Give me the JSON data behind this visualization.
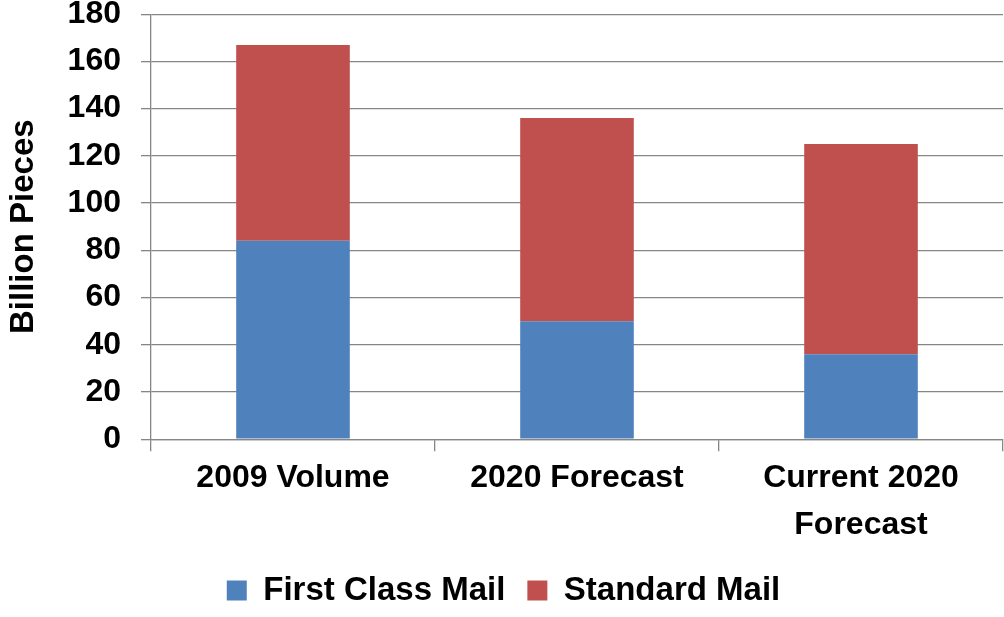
{
  "chart_data": {
    "type": "bar",
    "stacked": true,
    "categories": [
      "2009 Volume",
      "2020 Forecast",
      "Current 2020 Forecast"
    ],
    "series": [
      {
        "name": "First Class Mail",
        "color": "#4f81bd",
        "values": [
          84,
          50,
          36
        ]
      },
      {
        "name": "Standard Mail",
        "color": "#c0504d",
        "values": [
          83,
          86,
          89
        ]
      }
    ],
    "ylabel": "Billion Pieces",
    "ylim": [
      0,
      180
    ],
    "yticks": [
      0,
      20,
      40,
      60,
      80,
      100,
      120,
      140,
      160,
      180
    ],
    "grid": "y",
    "legend": "bottom"
  }
}
